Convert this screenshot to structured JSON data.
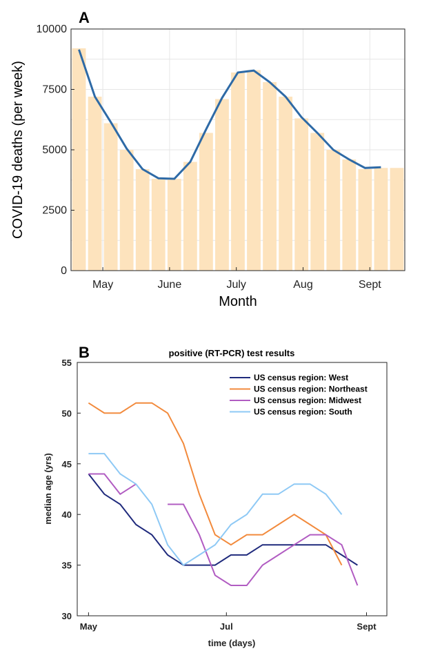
{
  "panel_a_label": "A",
  "panel_b_label": "B",
  "chart_data": [
    {
      "type": "bar",
      "panel": "A",
      "xlabel": "Month",
      "ylabel": "COVID-19 deaths (per week)",
      "ylim": [
        0,
        10000
      ],
      "yticks": [
        0,
        2500,
        5000,
        7500,
        10000
      ],
      "ytick_labels": [
        "0",
        "2500",
        "5000",
        "7500",
        "10000"
      ],
      "xtick_labels": [
        "May",
        "June",
        "July",
        "Aug",
        "Sept"
      ],
      "xtick_positions": [
        1.5,
        5.7,
        9.9,
        14.1,
        18.3
      ],
      "grid": true,
      "bar_color": "#fde3bd",
      "line_color": "#2e6aa6",
      "weeks": [
        0,
        1,
        2,
        3,
        4,
        5,
        6,
        7,
        8,
        9,
        10,
        11,
        12,
        13,
        14,
        15,
        16,
        17,
        18,
        19,
        20
      ],
      "bar_values": [
        9200,
        7200,
        6100,
        5000,
        4200,
        3800,
        3800,
        4500,
        5700,
        7100,
        8200,
        8300,
        7800,
        7200,
        6300,
        5700,
        5000,
        4600,
        4200,
        4250,
        4250
      ],
      "line_values": [
        9150,
        7200,
        6150,
        5050,
        4200,
        3820,
        3800,
        4500,
        5850,
        7150,
        8200,
        8280,
        7800,
        7200,
        6350,
        5700,
        5000,
        4600,
        4250,
        4280,
        null
      ]
    },
    {
      "type": "line",
      "panel": "B",
      "title": "positive (RT-PCR) test results",
      "xlabel": "time (days)",
      "ylabel": "median age (yrs)",
      "ylim": [
        30,
        55
      ],
      "yticks": [
        30,
        35,
        40,
        45,
        50,
        55
      ],
      "xtick_labels": [
        "May",
        "Jul",
        "Sept"
      ],
      "xtick_positions": [
        0,
        61,
        123
      ],
      "legend_position": "top-right",
      "x": [
        0,
        7,
        14,
        21,
        28,
        35,
        42,
        49,
        56,
        63,
        70,
        77,
        84,
        91,
        98,
        105,
        112,
        119
      ],
      "series": [
        {
          "name": "US census region: West",
          "color": "#1f2a7c",
          "values": [
            44,
            42,
            41,
            39,
            38,
            36,
            35,
            35,
            35,
            36,
            36,
            37,
            37,
            37,
            37,
            37,
            36,
            35
          ]
        },
        {
          "name": "US census region: Northeast",
          "color": "#f28a3c",
          "values": [
            51,
            50,
            50,
            51,
            51,
            50,
            47,
            42,
            38,
            37,
            38,
            38,
            39,
            40,
            39,
            38,
            35,
            null
          ]
        },
        {
          "name": "US census region: Midwest",
          "color": "#b15cc2",
          "values": [
            44,
            44,
            42,
            43,
            null,
            41,
            41,
            38,
            34,
            33,
            33,
            35,
            36,
            37,
            38,
            38,
            37,
            33
          ]
        },
        {
          "name": "US census region: South",
          "color": "#8ec9f5",
          "values": [
            46,
            46,
            44,
            43,
            41,
            37,
            35,
            36,
            37,
            39,
            40,
            42,
            42,
            43,
            43,
            42,
            40,
            null
          ]
        }
      ]
    }
  ]
}
